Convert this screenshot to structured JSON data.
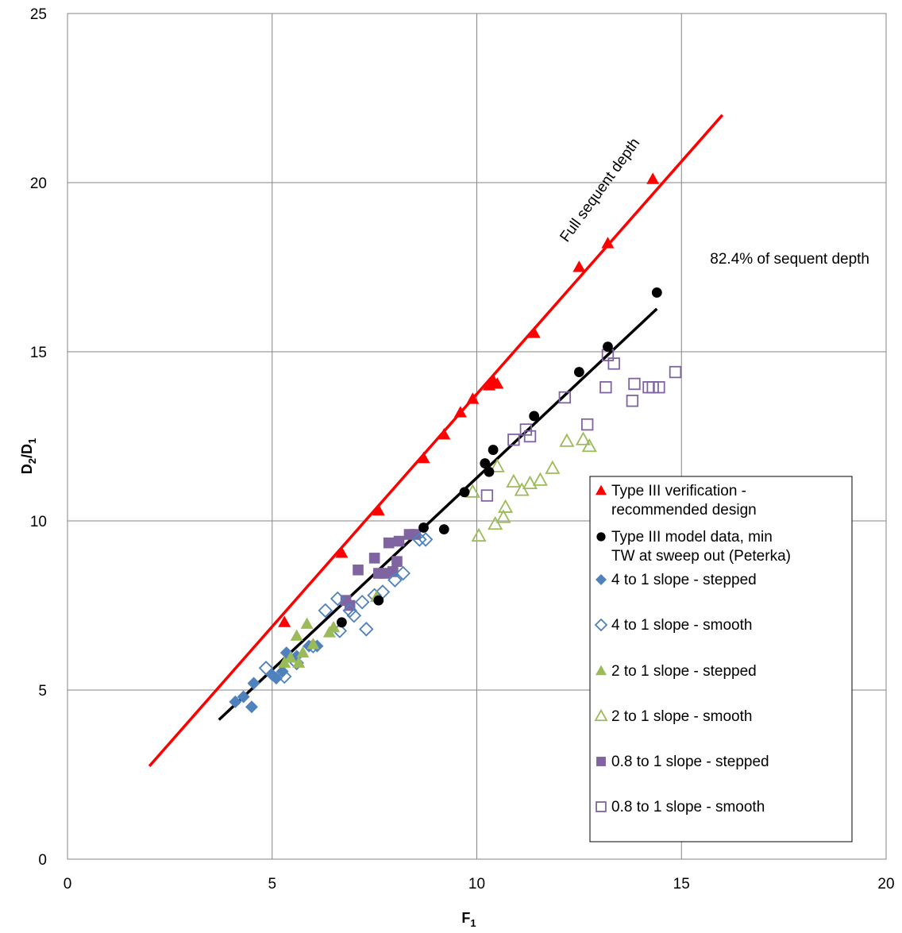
{
  "chart_data": {
    "type": "scatter",
    "xlabel": "F",
    "xlabel_sub": "1",
    "ylabel_parts": [
      "D",
      "2",
      "/D",
      "1"
    ],
    "xlim": [
      0,
      20
    ],
    "ylim": [
      0,
      25
    ],
    "xticks": [
      0,
      5,
      10,
      15,
      20
    ],
    "yticks": [
      0,
      5,
      10,
      15,
      20,
      25
    ],
    "grid": true,
    "legend_position": "right",
    "annotations": [
      {
        "text": "Full sequent depth",
        "x": 13.1,
        "y": 19.7,
        "rotate": -54
      },
      {
        "text": "82.4% of sequent depth",
        "x": 14.2,
        "y": 17.6,
        "rotate": 0
      }
    ],
    "lines": [
      {
        "name": "Full sequent depth",
        "color": "#ff0000",
        "points": [
          [
            2.0,
            2.75
          ],
          [
            16.0,
            22.0
          ]
        ]
      },
      {
        "name": "82.4% of sequent depth",
        "color": "#000000",
        "points": [
          [
            3.7,
            4.12
          ],
          [
            14.4,
            16.27
          ]
        ]
      }
    ],
    "series": [
      {
        "name": "Type III verification - recommended design",
        "legend_lines": [
          "Type III verification -",
          "recommended design"
        ],
        "marker": "triangle",
        "filled": true,
        "color": "#ff0000",
        "points": [
          [
            5.3,
            7.0
          ],
          [
            6.7,
            9.05
          ],
          [
            7.6,
            10.3
          ],
          [
            8.7,
            11.85
          ],
          [
            9.2,
            12.55
          ],
          [
            9.6,
            13.2
          ],
          [
            9.9,
            13.6
          ],
          [
            10.3,
            14.0
          ],
          [
            10.4,
            14.15
          ],
          [
            10.5,
            14.05
          ],
          [
            11.4,
            15.55
          ],
          [
            12.5,
            17.5
          ],
          [
            13.2,
            18.2
          ],
          [
            14.3,
            20.1
          ]
        ]
      },
      {
        "name": "Type III model data, min TW at sweep out (Peterka)",
        "legend_lines": [
          "Type III model data, min",
          "TW at sweep out (Peterka)"
        ],
        "marker": "circle",
        "filled": true,
        "color": "#000000",
        "points": [
          [
            6.7,
            7.0
          ],
          [
            7.6,
            7.65
          ],
          [
            8.7,
            9.8
          ],
          [
            9.2,
            9.75
          ],
          [
            9.7,
            10.85
          ],
          [
            10.2,
            11.7
          ],
          [
            10.3,
            11.45
          ],
          [
            10.4,
            12.1
          ],
          [
            11.4,
            13.1
          ],
          [
            12.5,
            14.4
          ],
          [
            13.2,
            15.15
          ],
          [
            14.4,
            16.75
          ]
        ]
      },
      {
        "name": "4 to 1 slope - stepped",
        "legend_lines": [
          "4 to 1 slope - stepped"
        ],
        "marker": "diamond",
        "filled": true,
        "color": "#4f81bd",
        "points": [
          [
            4.1,
            4.65
          ],
          [
            4.3,
            4.8
          ],
          [
            4.5,
            4.5
          ],
          [
            4.55,
            5.2
          ],
          [
            5.0,
            5.45
          ],
          [
            5.1,
            5.35
          ],
          [
            5.25,
            5.55
          ],
          [
            5.35,
            6.1
          ],
          [
            5.6,
            6.0
          ],
          [
            5.9,
            6.3
          ],
          [
            6.1,
            6.3
          ]
        ]
      },
      {
        "name": "4 to 1 slope - smooth",
        "legend_lines": [
          "4 to 1 slope - smooth"
        ],
        "marker": "diamond",
        "filled": false,
        "color": "#4f81bd",
        "points": [
          [
            4.85,
            5.65
          ],
          [
            5.3,
            5.4
          ],
          [
            5.6,
            5.8
          ],
          [
            6.0,
            6.3
          ],
          [
            6.3,
            7.35
          ],
          [
            6.6,
            7.7
          ],
          [
            6.65,
            6.75
          ],
          [
            6.9,
            7.35
          ],
          [
            7.0,
            7.2
          ],
          [
            7.2,
            7.6
          ],
          [
            7.3,
            6.8
          ],
          [
            7.5,
            7.8
          ],
          [
            7.7,
            7.9
          ],
          [
            8.0,
            8.25
          ],
          [
            8.2,
            8.45
          ],
          [
            8.6,
            9.45
          ],
          [
            8.75,
            9.45
          ]
        ]
      },
      {
        "name": "2 to 1 slope - stepped",
        "legend_lines": [
          "2 to 1 slope - stepped"
        ],
        "marker": "triangle",
        "filled": true,
        "color": "#9bbb59",
        "points": [
          [
            5.3,
            5.8
          ],
          [
            5.45,
            5.95
          ],
          [
            5.6,
            6.6
          ],
          [
            5.65,
            5.8
          ],
          [
            5.75,
            6.1
          ],
          [
            5.85,
            6.95
          ],
          [
            6.0,
            6.35
          ],
          [
            6.4,
            6.7
          ],
          [
            6.5,
            6.85
          ],
          [
            7.55,
            7.75
          ]
        ]
      },
      {
        "name": "2 to 1 slope - smooth",
        "legend_lines": [
          "2 to 1 slope - smooth"
        ],
        "marker": "triangle",
        "filled": false,
        "color": "#9bbb59",
        "points": [
          [
            9.9,
            10.85
          ],
          [
            10.05,
            9.55
          ],
          [
            10.5,
            11.6
          ],
          [
            10.45,
            9.9
          ],
          [
            10.65,
            10.1
          ],
          [
            10.7,
            10.4
          ],
          [
            10.9,
            11.15
          ],
          [
            11.1,
            10.9
          ],
          [
            11.3,
            11.1
          ],
          [
            11.55,
            11.2
          ],
          [
            11.85,
            11.55
          ],
          [
            12.2,
            12.35
          ],
          [
            12.6,
            12.4
          ],
          [
            12.75,
            12.2
          ]
        ]
      },
      {
        "name": "0.8 to 1 slope - stepped",
        "legend_lines": [
          "0.8 to 1 slope - stepped"
        ],
        "marker": "square",
        "filled": true,
        "color": "#8064a2",
        "points": [
          [
            6.8,
            7.65
          ],
          [
            6.9,
            7.5
          ],
          [
            7.1,
            8.55
          ],
          [
            7.5,
            8.9
          ],
          [
            7.6,
            8.45
          ],
          [
            7.75,
            8.45
          ],
          [
            7.85,
            9.35
          ],
          [
            7.95,
            8.5
          ],
          [
            8.05,
            8.8
          ],
          [
            8.1,
            9.4
          ],
          [
            8.35,
            9.6
          ],
          [
            8.5,
            9.6
          ]
        ]
      },
      {
        "name": "0.8 to 1 slope - smooth",
        "legend_lines": [
          "0.8 to 1 slope - smooth"
        ],
        "marker": "square",
        "filled": false,
        "color": "#8064a2",
        "points": [
          [
            10.25,
            10.75
          ],
          [
            10.9,
            12.4
          ],
          [
            11.2,
            12.7
          ],
          [
            11.3,
            12.5
          ],
          [
            12.15,
            13.65
          ],
          [
            12.7,
            12.85
          ],
          [
            13.15,
            13.95
          ],
          [
            13.2,
            14.9
          ],
          [
            13.35,
            14.65
          ],
          [
            13.8,
            13.55
          ],
          [
            13.85,
            14.05
          ],
          [
            14.2,
            13.95
          ],
          [
            14.3,
            13.95
          ],
          [
            14.45,
            13.95
          ],
          [
            14.85,
            14.4
          ]
        ]
      }
    ]
  }
}
